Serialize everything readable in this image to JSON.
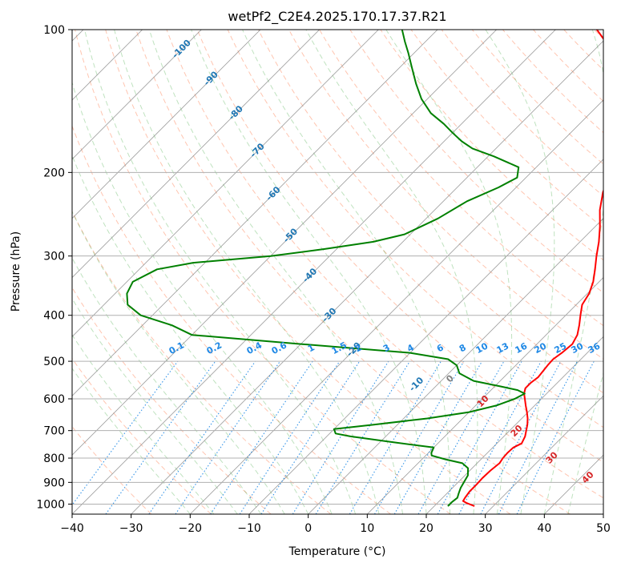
{
  "chart_data": {
    "type": "line",
    "title": "wetPf2_C2E4.2025.170.17.37.R21",
    "xlabel": "Temperature (°C)",
    "ylabel": "Pressure (hPa)",
    "xlim": [
      -40,
      50
    ],
    "ylim": [
      1050,
      100
    ],
    "y_scale": "log",
    "grid": true,
    "x_ticks": [
      -40,
      -30,
      -20,
      -10,
      0,
      10,
      20,
      30,
      40,
      50
    ],
    "y_ticks": [
      100,
      200,
      300,
      400,
      500,
      600,
      700,
      800,
      900,
      1000
    ],
    "colors": {
      "temperature": "#ff0000",
      "dewpoint": "#008000",
      "dry_adiabat": "#ff7f50",
      "moist_adiabat": "#2ca02c",
      "mixing_ratio": "#1e88e5",
      "isotherm": "#808080",
      "isotherm_label": "#1f77b4",
      "warm_label": "#d62728"
    },
    "series": [
      {
        "points": [
          [
            1010,
            26.8
          ],
          [
            995,
            25.0
          ],
          [
            985,
            24.0
          ],
          [
            970,
            23.8
          ],
          [
            940,
            23.5
          ],
          [
            910,
            23.5
          ],
          [
            880,
            23.4
          ],
          [
            850,
            23.5
          ],
          [
            820,
            23.8
          ],
          [
            800,
            23.5
          ],
          [
            780,
            23.4
          ],
          [
            760,
            23.5
          ],
          [
            745,
            24.2
          ],
          [
            720,
            23.6
          ],
          [
            700,
            22.8
          ],
          [
            680,
            22.0
          ],
          [
            660,
            21.0
          ],
          [
            640,
            19.8
          ],
          [
            620,
            18.5
          ],
          [
            600,
            17.2
          ],
          [
            585,
            16.2
          ],
          [
            570,
            15.5
          ],
          [
            555,
            15.5
          ],
          [
            540,
            15.8
          ],
          [
            525,
            15.6
          ],
          [
            510,
            15.4
          ],
          [
            495,
            15.3
          ],
          [
            480,
            15.7
          ],
          [
            460,
            16.0
          ],
          [
            440,
            15.3
          ],
          [
            420,
            14.0
          ],
          [
            400,
            12.5
          ],
          [
            380,
            11.0
          ],
          [
            360,
            10.3
          ],
          [
            340,
            9.0
          ],
          [
            320,
            7.2
          ],
          [
            300,
            5.2
          ],
          [
            280,
            3.2
          ],
          [
            260,
            0.8
          ],
          [
            240,
            -2.0
          ],
          [
            220,
            -4.5
          ],
          [
            205,
            -6.0
          ],
          [
            190,
            -7.5
          ],
          [
            178,
            -8.6
          ],
          [
            170,
            -9.8
          ],
          [
            160,
            -11.5
          ],
          [
            150,
            -14.0
          ],
          [
            140,
            -16.5
          ],
          [
            130,
            -19.5
          ],
          [
            120,
            -23.0
          ],
          [
            112,
            -26.5
          ],
          [
            106,
            -29.5
          ],
          [
            100,
            -33.0
          ]
        ]
      },
      {
        "points": [
          [
            1010,
            22.3
          ],
          [
            990,
            22.3
          ],
          [
            970,
            22.5
          ],
          [
            950,
            22.0
          ],
          [
            925,
            21.4
          ],
          [
            900,
            21.0
          ],
          [
            870,
            20.5
          ],
          [
            840,
            19.3
          ],
          [
            820,
            17.5
          ],
          [
            805,
            14.0
          ],
          [
            790,
            11.0
          ],
          [
            780,
            10.5
          ],
          [
            760,
            10.0
          ],
          [
            740,
            2.0
          ],
          [
            720,
            -6.0
          ],
          [
            710,
            -9.0
          ],
          [
            695,
            -10.0
          ],
          [
            680,
            -4.0
          ],
          [
            660,
            4.0
          ],
          [
            640,
            10.0
          ],
          [
            620,
            13.5
          ],
          [
            600,
            15.5
          ],
          [
            585,
            16.3
          ],
          [
            575,
            14.5
          ],
          [
            565,
            11.0
          ],
          [
            550,
            5.5
          ],
          [
            530,
            1.8
          ],
          [
            510,
            0.0
          ],
          [
            495,
            -2.5
          ],
          [
            480,
            -10.0
          ],
          [
            460,
            -30.0
          ],
          [
            440,
            -50.0
          ],
          [
            420,
            -55.0
          ],
          [
            400,
            -62.0
          ],
          [
            380,
            -66.0
          ],
          [
            360,
            -68.0
          ],
          [
            340,
            -69.0
          ],
          [
            320,
            -67.0
          ],
          [
            310,
            -62.0
          ],
          [
            300,
            -50.0
          ],
          [
            290,
            -42.0
          ],
          [
            280,
            -35.0
          ],
          [
            270,
            -31.0
          ],
          [
            250,
            -28.0
          ],
          [
            230,
            -26.0
          ],
          [
            215,
            -23.0
          ],
          [
            205,
            -21.5
          ],
          [
            195,
            -23.0
          ],
          [
            185,
            -29.0
          ],
          [
            178,
            -34.0
          ],
          [
            172,
            -37.0
          ],
          [
            165,
            -40.0
          ],
          [
            158,
            -43.0
          ],
          [
            150,
            -47.0
          ],
          [
            140,
            -51.0
          ],
          [
            130,
            -54.5
          ],
          [
            120,
            -58.0
          ],
          [
            112,
            -61.0
          ],
          [
            106,
            -63.5
          ],
          [
            100,
            -66.0
          ]
        ]
      }
    ],
    "isotherm_labels": [
      "-100",
      "-90",
      "-80",
      "-70",
      "-60",
      "-50",
      "-40",
      "-30",
      "-20",
      "-10",
      "0",
      "10",
      "20",
      "30",
      "40"
    ],
    "mixing_ratio_labels": [
      "0.1",
      "0.2",
      "0.4",
      "0.6",
      "1",
      "1.5",
      "2",
      "3",
      "4",
      "6",
      "8",
      "10",
      "13",
      "16",
      "20",
      "25",
      "30",
      "36"
    ],
    "mixing_ratio_values": [
      0.1,
      0.2,
      0.4,
      0.6,
      1,
      1.5,
      2,
      3,
      4,
      6,
      8,
      10,
      13,
      16,
      20,
      25,
      30,
      36
    ]
  }
}
